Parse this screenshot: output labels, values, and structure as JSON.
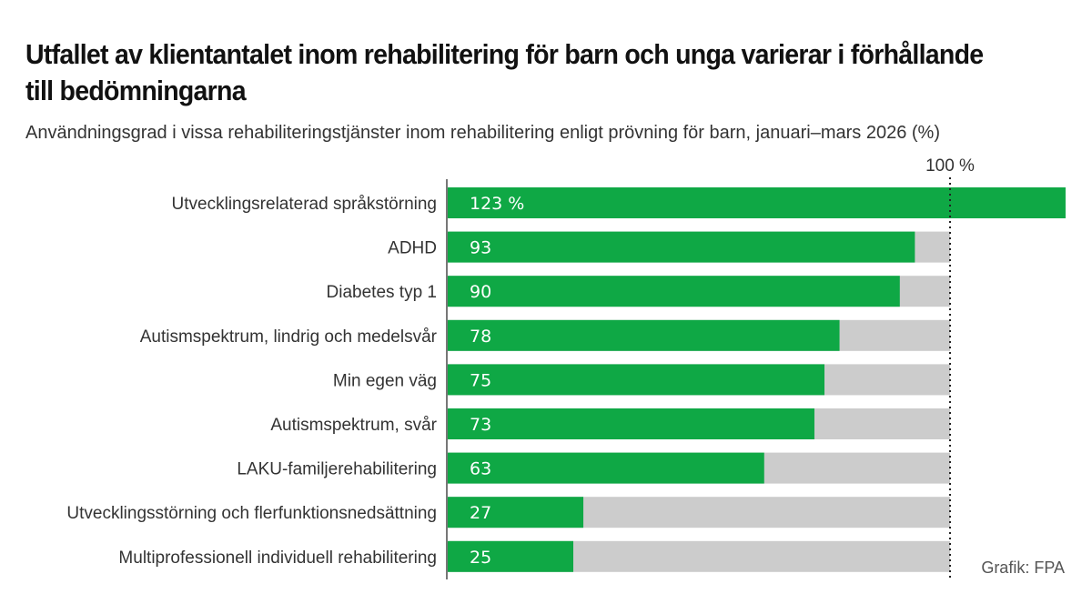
{
  "title": "Utfallet av klientantalet inom rehabilitering för barn och unga varierar i förhållande till bedömningarna",
  "subtitle": "Användningsgrad i vissa rehabiliteringstjänster inom rehabilitering enligt prövning för barn, januari–mars 2026 (%)",
  "credit": "Grafik: FPA",
  "colors": {
    "bar": "#0fa845",
    "remainder": "#cccccc"
  },
  "chart_data": {
    "type": "bar",
    "orientation": "horizontal",
    "categories": [
      "Utvecklingsrelaterad språkstörning",
      "ADHD",
      "Diabetes typ 1",
      "Autismspektrum, lindrig och medelsvår",
      "Min egen väg",
      "Autismspektrum, svår",
      "LAKU-familjerehabilitering",
      "Utvecklingsstörning och flerfunktionsnedsättning",
      "Multiprofessionell individuell rehabilitering"
    ],
    "values": [
      123,
      93,
      90,
      78,
      75,
      73,
      63,
      27,
      25
    ],
    "value_labels": [
      "123 %",
      "93",
      "90",
      "78",
      "75",
      "73",
      "63",
      "27",
      "25"
    ],
    "reference_line": {
      "value": 100,
      "label": "100 %"
    },
    "xlim": [
      0,
      123
    ]
  }
}
